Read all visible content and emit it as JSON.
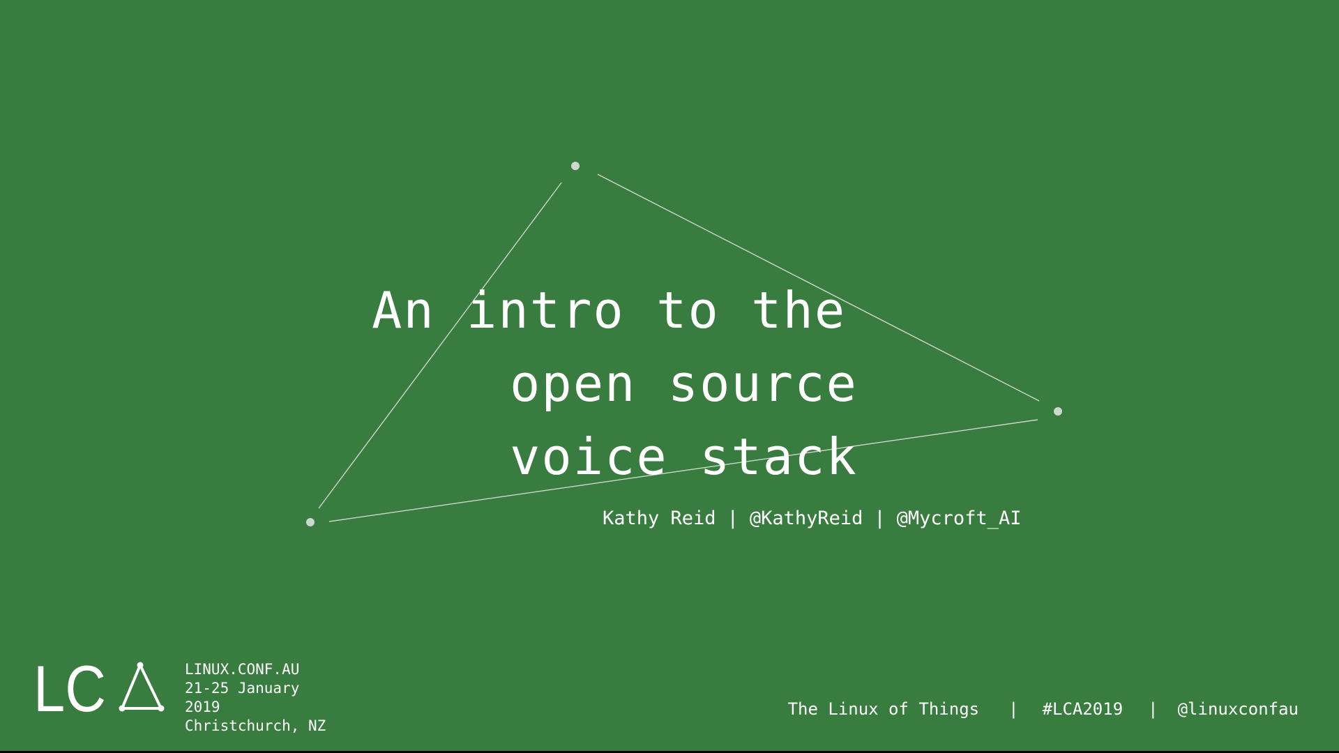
{
  "slide": {
    "background_color": "#397c3f",
    "text_color": "#ffffff",
    "line_color": "#cfd8cf",
    "title_lines": [
      "An intro to the",
      "open source",
      "voice stack"
    ],
    "byline": {
      "name": "Kathy Reid",
      "separator": "|",
      "handle_personal": "@KathyReid",
      "handle_org": "@Mycroft_AI"
    }
  },
  "conference": {
    "logo_letters": "LC",
    "logo_icon": "triangle-nodes-icon",
    "info_lines": [
      "LINUX.CONF.AU",
      "21-25 January",
      "2019",
      "Christchurch, NZ"
    ]
  },
  "footer": {
    "theme": "The Linux of Things",
    "separator": "|",
    "hashtag": "#LCA2019",
    "twitter": "@linuxconfau"
  }
}
